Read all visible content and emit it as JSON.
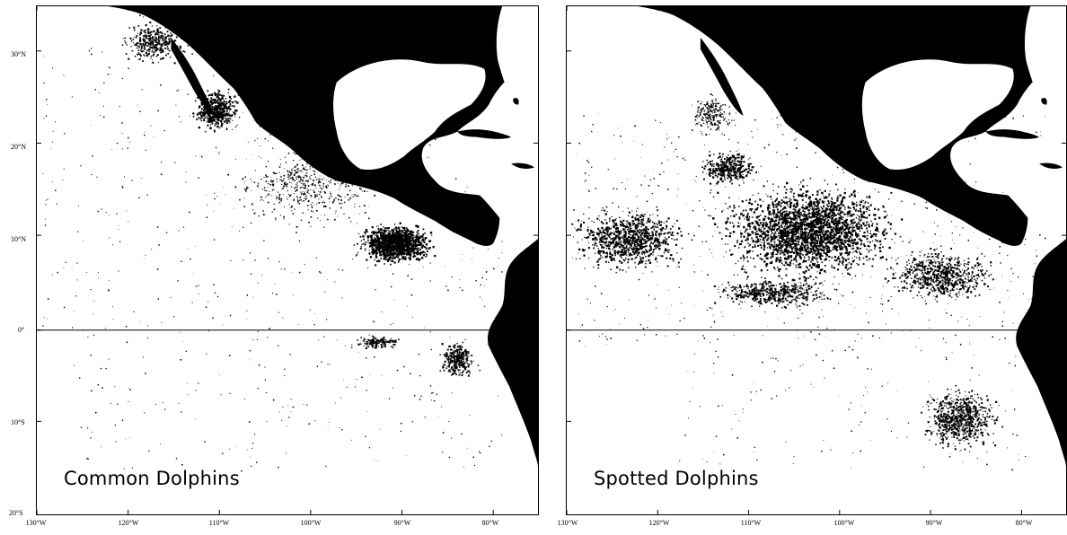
{
  "maps": [
    {
      "id": "left",
      "title": "Common Dolphins",
      "lat_labels": [
        "30°N",
        "20°N",
        "10°N",
        "0°",
        "10°S",
        "20°S"
      ],
      "lon_labels": [
        "130°W",
        "120°W",
        "110°W",
        "100°W",
        "90°W",
        "80°W"
      ]
    },
    {
      "id": "right",
      "title": "Spotted Dolphins",
      "lat_labels": [],
      "lon_labels": [
        "130°W",
        "120°W",
        "110°W",
        "100°W",
        "90°W",
        "80°W"
      ]
    }
  ],
  "colors": {
    "land": "#000000",
    "ocean": "#ffffff",
    "sightings": "#000000"
  }
}
